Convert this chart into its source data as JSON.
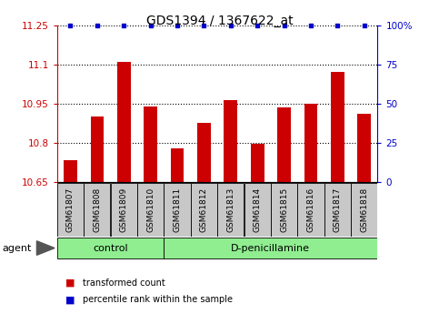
{
  "title": "GDS1394 / 1367622_at",
  "samples": [
    "GSM61807",
    "GSM61808",
    "GSM61809",
    "GSM61810",
    "GSM61811",
    "GSM61812",
    "GSM61813",
    "GSM61814",
    "GSM61815",
    "GSM61816",
    "GSM61817",
    "GSM61818"
  ],
  "bar_values": [
    10.735,
    10.9,
    11.11,
    10.94,
    10.78,
    10.875,
    10.965,
    10.795,
    10.935,
    10.95,
    11.07,
    10.91
  ],
  "percentile_values": [
    100,
    100,
    100,
    100,
    100,
    100,
    100,
    100,
    100,
    100,
    100,
    100
  ],
  "bar_color": "#cc0000",
  "percentile_color": "#0000cc",
  "ylim_left": [
    10.65,
    11.25
  ],
  "ylim_right": [
    0,
    100
  ],
  "yticks_left": [
    10.65,
    10.8,
    10.95,
    11.1,
    11.25
  ],
  "ytick_labels_left": [
    "10.65",
    "10.8",
    "10.95",
    "11.1",
    "11.25"
  ],
  "yticks_right": [
    0,
    25,
    50,
    75,
    100
  ],
  "ytick_labels_right": [
    "0",
    "25",
    "50",
    "75",
    "100%"
  ],
  "n_control": 4,
  "n_treatment": 8,
  "control_label": "control",
  "treatment_label": "D-penicillamine",
  "agent_label": "agent",
  "legend_bar_label": "transformed count",
  "legend_dot_label": "percentile rank within the sample",
  "bar_bottom": 10.65,
  "green_color": "#90ee90",
  "gray_color": "#c8c8c8",
  "bar_width": 0.5
}
